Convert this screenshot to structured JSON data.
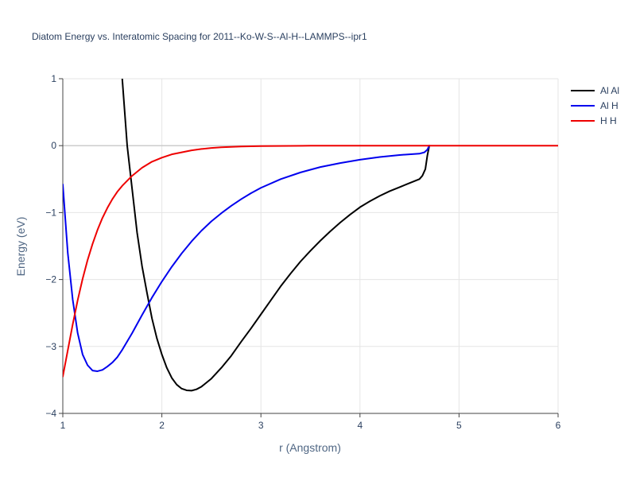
{
  "chart_data": {
    "type": "line",
    "title": "Diatom Energy vs. Interatomic Spacing for 2011--Ko-W-S--Al-H--LAMMPS--ipr1",
    "xlabel": "r (Angstrom)",
    "ylabel": "Energy (eV)",
    "xlim": [
      1,
      6
    ],
    "ylim": [
      -4,
      1
    ],
    "xticks": [
      1,
      2,
      3,
      4,
      5,
      6
    ],
    "xtick_labels": [
      "1",
      "2",
      "3",
      "4",
      "5",
      "6"
    ],
    "yticks": [
      1,
      0,
      -1,
      -2,
      -3,
      -4
    ],
    "ytick_labels": [
      "1",
      "0",
      "−1",
      "−2",
      "−3",
      "−4"
    ],
    "grid": true,
    "legend_position": "top-right",
    "series": [
      {
        "name": "Al Al",
        "color": "#000000",
        "x": [
          1.6,
          1.65,
          1.7,
          1.75,
          1.8,
          1.85,
          1.9,
          1.95,
          2.0,
          2.05,
          2.1,
          2.15,
          2.2,
          2.25,
          2.3,
          2.35,
          2.4,
          2.5,
          2.6,
          2.7,
          2.8,
          2.9,
          3.0,
          3.1,
          3.2,
          3.3,
          3.4,
          3.5,
          3.6,
          3.7,
          3.8,
          3.9,
          4.0,
          4.1,
          4.2,
          4.3,
          4.4,
          4.5,
          4.6,
          4.63,
          4.66,
          4.68,
          4.7
        ],
        "y": [
          1.0,
          0.0,
          -0.65,
          -1.3,
          -1.8,
          -2.2,
          -2.58,
          -2.88,
          -3.12,
          -3.32,
          -3.47,
          -3.57,
          -3.63,
          -3.655,
          -3.66,
          -3.64,
          -3.6,
          -3.48,
          -3.32,
          -3.14,
          -2.93,
          -2.73,
          -2.52,
          -2.31,
          -2.1,
          -1.91,
          -1.73,
          -1.57,
          -1.42,
          -1.28,
          -1.15,
          -1.03,
          -0.92,
          -0.83,
          -0.75,
          -0.68,
          -0.62,
          -0.56,
          -0.5,
          -0.45,
          -0.35,
          -0.15,
          0.0
        ]
      },
      {
        "name": "Al H",
        "color": "#0000ee",
        "x": [
          1.0,
          1.05,
          1.1,
          1.15,
          1.2,
          1.25,
          1.3,
          1.35,
          1.4,
          1.45,
          1.5,
          1.55,
          1.6,
          1.7,
          1.8,
          1.9,
          2.0,
          2.1,
          2.2,
          2.3,
          2.4,
          2.5,
          2.6,
          2.7,
          2.8,
          2.9,
          3.0,
          3.2,
          3.4,
          3.6,
          3.8,
          4.0,
          4.2,
          4.4,
          4.6,
          4.65,
          4.68,
          4.7
        ],
        "y": [
          -0.58,
          -1.6,
          -2.3,
          -2.8,
          -3.12,
          -3.28,
          -3.36,
          -3.37,
          -3.35,
          -3.3,
          -3.24,
          -3.16,
          -3.05,
          -2.8,
          -2.53,
          -2.27,
          -2.03,
          -1.81,
          -1.61,
          -1.43,
          -1.27,
          -1.13,
          -1.01,
          -0.9,
          -0.8,
          -0.71,
          -0.63,
          -0.5,
          -0.4,
          -0.32,
          -0.26,
          -0.21,
          -0.17,
          -0.14,
          -0.12,
          -0.1,
          -0.06,
          0.0
        ]
      },
      {
        "name": "H H",
        "color": "#ee0000",
        "x": [
          1.0,
          1.05,
          1.1,
          1.15,
          1.2,
          1.25,
          1.3,
          1.35,
          1.4,
          1.45,
          1.5,
          1.55,
          1.6,
          1.7,
          1.8,
          1.9,
          2.0,
          2.1,
          2.2,
          2.3,
          2.4,
          2.5,
          2.6,
          2.8,
          3.0,
          3.5,
          4.0,
          5.0,
          6.0
        ],
        "y": [
          -3.45,
          -3.06,
          -2.67,
          -2.31,
          -1.99,
          -1.71,
          -1.47,
          -1.26,
          -1.08,
          -0.93,
          -0.8,
          -0.69,
          -0.6,
          -0.45,
          -0.33,
          -0.24,
          -0.18,
          -0.13,
          -0.1,
          -0.07,
          -0.05,
          -0.035,
          -0.025,
          -0.012,
          -0.006,
          -0.001,
          0.0,
          0.0,
          0.0
        ]
      }
    ]
  }
}
